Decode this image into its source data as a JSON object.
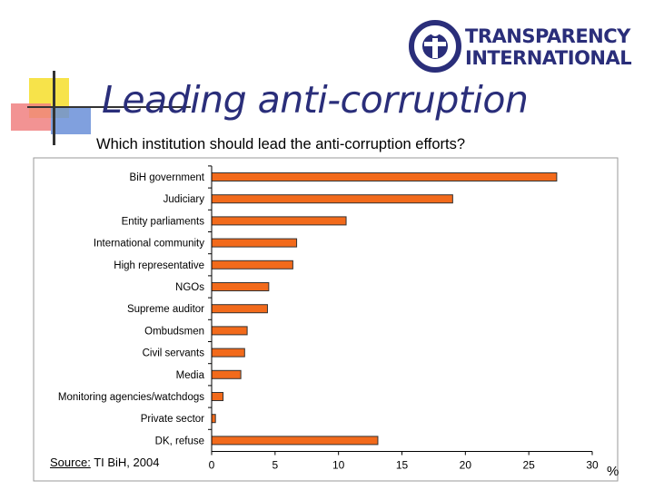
{
  "slide": {
    "title": "Leading anti-corruption",
    "subtitle": "Which institution should lead the anti-corruption efforts?",
    "logo_text": "TRANSPARENCY INTERNATIONAL",
    "source_label": "Source:",
    "source_text": " TI BiH, 2004"
  },
  "colors": {
    "bar": "#f26a1b",
    "title": "#2a2e7a"
  },
  "chart_data": {
    "type": "bar",
    "orientation": "horizontal",
    "categories": [
      "BiH government",
      "Judiciary",
      "Entity parliaments",
      "International community",
      "High representative",
      "NGOs",
      "Supreme auditor",
      "Ombudsmen",
      "Civil servants",
      "Media",
      "Monitoring agencies/watchdogs",
      "Private sector",
      "DK, refuse"
    ],
    "values": [
      27.2,
      19.0,
      10.6,
      6.7,
      6.4,
      4.5,
      4.4,
      2.8,
      2.6,
      2.3,
      0.9,
      0.3,
      13.1
    ],
    "xlim": [
      0,
      30
    ],
    "xticks": [
      0,
      5,
      10,
      15,
      20,
      25,
      30
    ],
    "xunit": "%",
    "grid": false
  }
}
